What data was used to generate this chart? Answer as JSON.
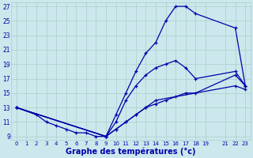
{
  "background_color": "#cce8ec",
  "grid_color": "#aacccc",
  "line_color": "#0000aa",
  "xlabel": "Graphe des températures (°c)",
  "xlim": [
    -0.5,
    23.5
  ],
  "ylim": [
    8.5,
    27.5
  ],
  "yticks": [
    9,
    11,
    13,
    15,
    17,
    19,
    21,
    23,
    25,
    27
  ],
  "xticks": [
    0,
    1,
    2,
    3,
    4,
    5,
    6,
    7,
    8,
    9,
    10,
    11,
    12,
    13,
    14,
    15,
    16,
    17,
    18,
    19,
    21,
    22,
    23
  ],
  "curve_high": {
    "x": [
      0,
      9,
      10,
      11,
      12,
      13,
      14,
      15,
      16,
      17,
      18,
      22,
      23
    ],
    "y": [
      13,
      9,
      12,
      15,
      18,
      20.5,
      22,
      25,
      27,
      27,
      26,
      24,
      16
    ]
  },
  "curve_mid": {
    "x": [
      0,
      9,
      10,
      11,
      12,
      13,
      14,
      15,
      16,
      17,
      18,
      22,
      23
    ],
    "y": [
      13,
      9,
      11,
      14,
      16,
      17.5,
      18.5,
      19,
      19.5,
      18.5,
      17,
      18,
      16
    ]
  },
  "curve_low1": {
    "x": [
      0,
      9,
      10,
      11,
      12,
      13,
      14,
      15,
      16,
      17,
      18,
      22,
      23
    ],
    "y": [
      13,
      9,
      10,
      11,
      12,
      13,
      13.5,
      14,
      14.5,
      15,
      15,
      17.5,
      16
    ]
  },
  "curve_min": {
    "x": [
      0,
      2,
      3,
      4,
      5,
      6,
      7,
      8,
      9,
      10,
      11,
      12,
      13,
      14,
      22,
      23
    ],
    "y": [
      13,
      12,
      11,
      10.5,
      10,
      9.5,
      9.5,
      9,
      9,
      10,
      11,
      12,
      13,
      14,
      16,
      15.5
    ]
  }
}
